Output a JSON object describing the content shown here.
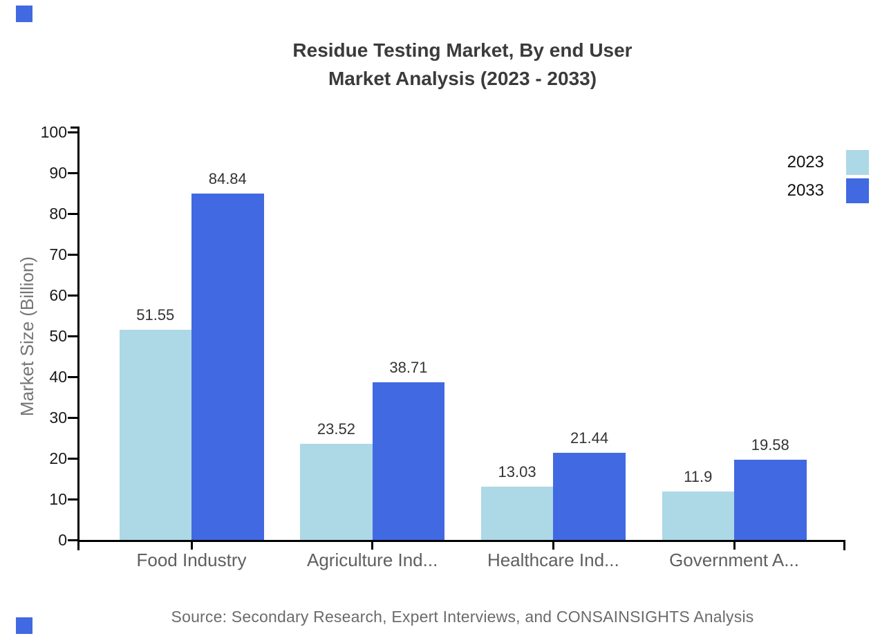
{
  "title": {
    "line1": "Residue Testing Market, By end User",
    "line2": "Market Analysis (2023 - 2033)"
  },
  "y_axis_title": "Market Size (Billion)",
  "source_note": "Source: Secondary Research, Expert Interviews, and CONSAINSIGHTS Analysis",
  "legend": {
    "position": "right-top",
    "items": [
      {
        "label": "2023",
        "color": "#ADD8E6"
      },
      {
        "label": "2033",
        "color": "#4169E1"
      }
    ]
  },
  "colors": {
    "series_2023": "#ADD8E6",
    "series_2033": "#4169E1",
    "axis": "#000000",
    "title_text": "#3b3b3b",
    "category_text": "#5f5f5f",
    "value_text": "#333333",
    "corner_accent": "#4169E1"
  },
  "chart_data": {
    "type": "bar",
    "title": "Residue Testing Market, By end User Market Analysis (2023 - 2033)",
    "xlabel": "",
    "ylabel": "Market Size (Billion)",
    "categories": [
      "Food Industry",
      "Agriculture Ind...",
      "Healthcare Ind...",
      "Government A..."
    ],
    "series": [
      {
        "name": "2023",
        "color": "#ADD8E6",
        "values": [
          51.55,
          23.52,
          13.03,
          11.9
        ]
      },
      {
        "name": "2033",
        "color": "#4169E1",
        "values": [
          84.84,
          38.71,
          21.44,
          19.58
        ]
      }
    ],
    "value_labels": [
      "51.55",
      "84.84",
      "23.52",
      "38.71",
      "13.03",
      "21.44",
      "11.9",
      "19.58"
    ],
    "ylim": [
      0,
      100
    ],
    "yticks": [
      0,
      10,
      20,
      30,
      40,
      50,
      60,
      70,
      80,
      90,
      100
    ],
    "grid": false,
    "legend_position": "right-top",
    "bar_layout": "grouped"
  }
}
